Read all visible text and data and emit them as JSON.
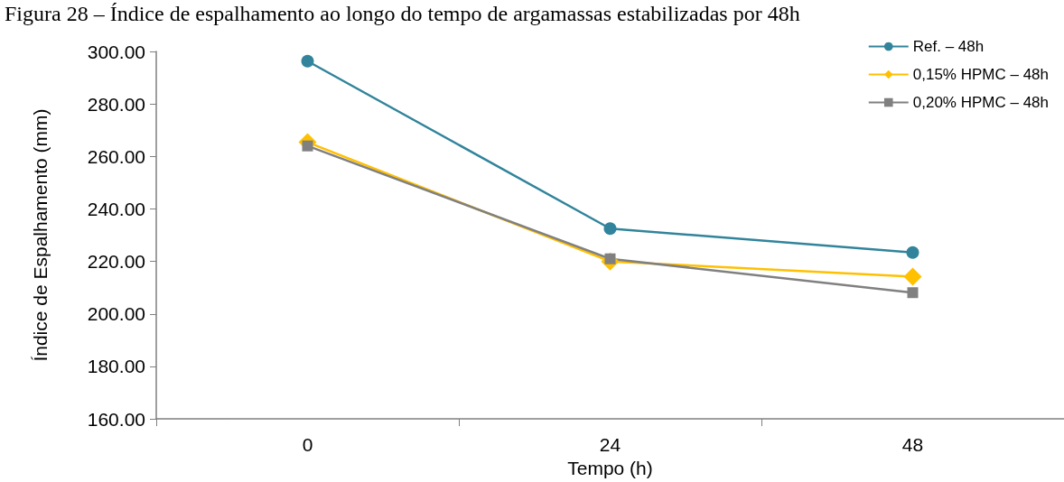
{
  "chart_data": {
    "type": "line",
    "title": "Figura 28 – Índice de espalhamento ao longo do tempo de argamassas estabilizadas por 48h",
    "xlabel": "Tempo (h)",
    "ylabel": "Índice de Espalhamento (mm)",
    "categories": [
      "0",
      "24",
      "48"
    ],
    "series": [
      {
        "name": "Ref. – 48h",
        "color": "#31849b",
        "marker": "circle",
        "values": [
          296.3,
          232.5,
          223.4
        ]
      },
      {
        "name": "0,15% HPMC – 48h",
        "color": "#ffc000",
        "marker": "diamond",
        "values": [
          265.4,
          220.0,
          214.2
        ]
      },
      {
        "name": "0,20% HPMC – 48h",
        "color": "#808080",
        "marker": "square",
        "values": [
          264.0,
          221.0,
          208.1
        ]
      }
    ],
    "ylim": [
      160,
      300
    ],
    "yticks": [
      {
        "value": 160,
        "label": "160.00"
      },
      {
        "value": 180,
        "label": "180.00"
      },
      {
        "value": 200,
        "label": "200.00"
      },
      {
        "value": 220,
        "label": "220.00"
      },
      {
        "value": 240,
        "label": "240.00"
      },
      {
        "value": 260,
        "label": "260.00"
      },
      {
        "value": 280,
        "label": "280.00"
      },
      {
        "value": 300,
        "label": "300.00"
      }
    ],
    "grid": false,
    "legend": "top right"
  }
}
